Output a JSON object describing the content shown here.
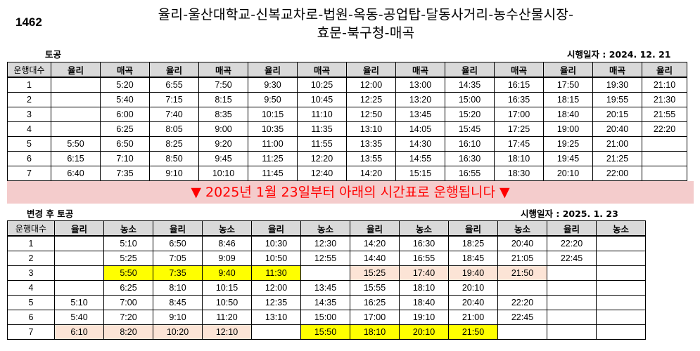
{
  "route_number": "1462",
  "route_title_line1": "율리-울산대학교-신복교차로-법원-옥동-공업탑-달동사거리-농수산물시장-",
  "route_title_line2": "효문-북구청-매곡",
  "top": {
    "section_label": "토공",
    "effective_date": "시행일자 : 2024. 12. 21",
    "headers": [
      "운행대수",
      "율리",
      "매곡",
      "율리",
      "매곡",
      "율리",
      "매곡",
      "율리",
      "매곡",
      "율리",
      "매곡",
      "율리",
      "매곡",
      "율리"
    ],
    "rows": [
      [
        "1",
        "",
        "5:20",
        "6:55",
        "7:50",
        "9:30",
        "10:25",
        "12:00",
        "13:00",
        "14:35",
        "16:15",
        "17:50",
        "19:30",
        "21:10"
      ],
      [
        "2",
        "",
        "5:40",
        "7:15",
        "8:15",
        "9:50",
        "10:45",
        "12:25",
        "13:20",
        "15:00",
        "16:35",
        "18:15",
        "19:55",
        "21:30"
      ],
      [
        "3",
        "",
        "6:00",
        "7:40",
        "8:35",
        "10:15",
        "11:10",
        "12:50",
        "13:45",
        "15:20",
        "17:00",
        "18:40",
        "20:15",
        "21:55"
      ],
      [
        "4",
        "",
        "6:25",
        "8:05",
        "9:00",
        "10:35",
        "11:35",
        "13:10",
        "14:05",
        "15:45",
        "17:25",
        "19:00",
        "20:40",
        "22:20"
      ],
      [
        "5",
        "5:50",
        "6:50",
        "8:25",
        "9:20",
        "11:00",
        "11:55",
        "13:35",
        "14:30",
        "16:10",
        "17:45",
        "19:25",
        "21:00",
        ""
      ],
      [
        "6",
        "6:15",
        "7:10",
        "8:50",
        "9:45",
        "11:25",
        "12:20",
        "13:55",
        "14:55",
        "16:30",
        "18:10",
        "19:45",
        "21:25",
        ""
      ],
      [
        "7",
        "6:40",
        "7:35",
        "9:10",
        "10:10",
        "11:45",
        "12:40",
        "14:20",
        "15:15",
        "16:55",
        "18:30",
        "20:10",
        "22:00",
        ""
      ]
    ]
  },
  "banner": {
    "text": "▼ 2025년 1월 23일부터 아래의 시간표로 운행됩니다 ▼",
    "color": "#ff0000",
    "background": "#f4cccc"
  },
  "bottom": {
    "section_label": "변경 후 토공",
    "effective_date": "시행일자 : 2025. 1. 23",
    "headers": [
      "운행대수",
      "율리",
      "농소",
      "율리",
      "농소",
      "율리",
      "농소",
      "율리",
      "농소",
      "율리",
      "농소",
      "율리",
      "농소"
    ],
    "rows": [
      [
        "1",
        "",
        "5:10",
        "6:50",
        "8:46",
        "10:30",
        "12:30",
        "14:20",
        "16:30",
        "18:25",
        "20:40",
        "22:20",
        ""
      ],
      [
        "2",
        "",
        "5:25",
        "7:05",
        "9:09",
        "10:50",
        "12:55",
        "14:40",
        "16:55",
        "18:45",
        "21:05",
        "22:45",
        ""
      ],
      [
        "3",
        "",
        "5:50",
        "7:35",
        "9:40",
        "11:30",
        "",
        "15:25",
        "17:40",
        "19:40",
        "21:50",
        "",
        ""
      ],
      [
        "4",
        "",
        "6:25",
        "8:10",
        "10:15",
        "12:00",
        "13:45",
        "15:55",
        "18:10",
        "20:10",
        "",
        "",
        ""
      ],
      [
        "5",
        "5:10",
        "7:00",
        "8:45",
        "10:50",
        "12:35",
        "14:35",
        "16:25",
        "18:40",
        "20:40",
        "22:20",
        "",
        ""
      ],
      [
        "6",
        "5:40",
        "7:20",
        "9:10",
        "11:20",
        "13:10",
        "15:00",
        "17:00",
        "19:10",
        "21:00",
        "22:45",
        "",
        ""
      ],
      [
        "7",
        "6:10",
        "8:20",
        "10:20",
        "12:10",
        "",
        "15:50",
        "18:10",
        "20:10",
        "21:50",
        "",
        "",
        ""
      ]
    ],
    "highlights": {
      "yellow": "#ffff00",
      "peach": "#fce4d6",
      "yellow_cells": [
        [
          2,
          2
        ],
        [
          2,
          3
        ],
        [
          2,
          4
        ],
        [
          2,
          5
        ],
        [
          6,
          6
        ],
        [
          6,
          7
        ],
        [
          6,
          8
        ],
        [
          6,
          9
        ]
      ],
      "peach_cells": [
        [
          2,
          7
        ],
        [
          2,
          8
        ],
        [
          2,
          9
        ],
        [
          2,
          10
        ],
        [
          6,
          1
        ],
        [
          6,
          2
        ],
        [
          6,
          3
        ],
        [
          6,
          4
        ]
      ]
    }
  }
}
